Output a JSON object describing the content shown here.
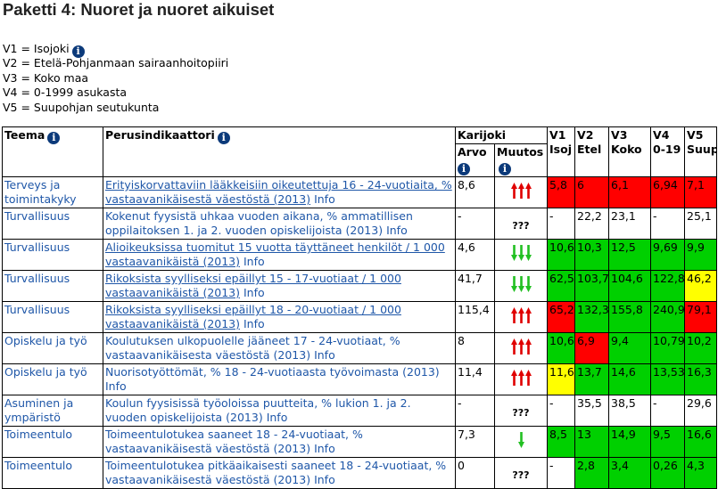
{
  "title": "Paketti 4: Nuoret ja nuoret aikuiset",
  "legend": [
    "V1 = Isojoki",
    "V2 = Etelä-Pohjanmaan sairaanhoitopiiri",
    "V3 = Koko maa",
    "V4 = 0-1999 asukasta",
    "V5 = Suupohjan seutukunta"
  ],
  "header": {
    "teema": "Teema",
    "perusindikaattori": "Perusindikaattori",
    "karijoki": "Karijoki",
    "arvo": "Arvo",
    "muutos": "Muutos",
    "v": [
      {
        "code": "V1",
        "short": "Isoj"
      },
      {
        "code": "V2",
        "short": "Etel"
      },
      {
        "code": "V3",
        "short": "Koko"
      },
      {
        "code": "V4",
        "short": "0-19"
      },
      {
        "code": "V5",
        "short": "Suup"
      }
    ]
  },
  "rows": [
    {
      "teema": "Terveys ja toimintakyky",
      "indicator": "Erityiskorvattaviin lääkkeisiin oikeutettuja 16 - 24-vuotiaita, % vastaavanikäisestä väestöstä (2013)",
      "info": "Info",
      "underline": true,
      "arvo": "8,6",
      "muutos": "up3",
      "v": [
        {
          "t": "5,8",
          "c": "red"
        },
        {
          "t": "6",
          "c": "red"
        },
        {
          "t": "6,1",
          "c": "red"
        },
        {
          "t": "6,94",
          "c": "red"
        },
        {
          "t": "7,1",
          "c": "red"
        }
      ]
    },
    {
      "teema": "Turvallisuus",
      "indicator": "Kokenut fyysistä uhkaa vuoden aikana, % ammatillisen oppilaitoksen 1. ja 2. vuoden opiskelijoista (2013)",
      "info": "Info",
      "underline": false,
      "arvo": "-",
      "muutos": "???",
      "v": [
        {
          "t": "-",
          "c": ""
        },
        {
          "t": "22,2",
          "c": ""
        },
        {
          "t": "23,1",
          "c": ""
        },
        {
          "t": "-",
          "c": ""
        },
        {
          "t": "25,1",
          "c": ""
        }
      ]
    },
    {
      "teema": "Turvallisuus",
      "indicator": "Alioikeuksissa tuomitut 15 vuotta täyttäneet henkilöt / 1 000 vastaavanikäistä (2013)",
      "info": "Info",
      "underline": true,
      "arvo": "4,6",
      "muutos": "down3",
      "v": [
        {
          "t": "10,6",
          "c": "green"
        },
        {
          "t": "10,3",
          "c": "green"
        },
        {
          "t": "12,5",
          "c": "green"
        },
        {
          "t": "9,69",
          "c": "green"
        },
        {
          "t": "9,9",
          "c": "green"
        }
      ]
    },
    {
      "teema": "Turvallisuus",
      "indicator": "Rikoksista syylliseksi epäillyt 15 - 17-vuotiaat / 1 000 vastaavanikäistä (2013)",
      "info": "Info",
      "underline": true,
      "arvo": "41,7",
      "muutos": "down3",
      "v": [
        {
          "t": "62,5",
          "c": "green"
        },
        {
          "t": "103,7",
          "c": "green"
        },
        {
          "t": "104,6",
          "c": "green"
        },
        {
          "t": "122,87",
          "c": "green"
        },
        {
          "t": "46,2",
          "c": "yellow"
        }
      ]
    },
    {
      "teema": "Turvallisuus",
      "indicator": "Rikoksista syylliseksi epäillyt 18 - 20-vuotiaat / 1 000 vastaavanikäistä (2013)",
      "info": "Info",
      "underline": true,
      "arvo": "115,4",
      "muutos": "up3",
      "v": [
        {
          "t": "65,2",
          "c": "red"
        },
        {
          "t": "132,3",
          "c": "green"
        },
        {
          "t": "155,8",
          "c": "green"
        },
        {
          "t": "240,93",
          "c": "green"
        },
        {
          "t": "79,1",
          "c": "red"
        }
      ]
    },
    {
      "teema": "Opiskelu ja työ",
      "indicator": "Koulutuksen ulkopuolelle jääneet 17 - 24-vuotiaat, % vastaavanikäisesta väestöstä (2013)",
      "info": "Info",
      "underline": false,
      "arvo": "8",
      "muutos": "up3",
      "v": [
        {
          "t": "10,6",
          "c": "green"
        },
        {
          "t": "6,9",
          "c": "red"
        },
        {
          "t": "9,4",
          "c": "green"
        },
        {
          "t": "10,79",
          "c": "green"
        },
        {
          "t": "10,2",
          "c": "green"
        }
      ]
    },
    {
      "teema": "Opiskelu ja työ",
      "indicator": "Nuorisotyöttömät, % 18 - 24-vuotiaasta työvoimasta (2013)",
      "info": "Info",
      "underline": false,
      "arvo": "11,4",
      "muutos": "up3",
      "v": [
        {
          "t": "11,6",
          "c": "yellow"
        },
        {
          "t": "13,7",
          "c": "green"
        },
        {
          "t": "14,6",
          "c": "green"
        },
        {
          "t": "13,53",
          "c": "green"
        },
        {
          "t": "16,3",
          "c": "green"
        }
      ]
    },
    {
      "teema": "Asuminen ja ympäristö",
      "indicator": "Koulun fyysisissä työoloissa puutteita, % lukion 1. ja 2. vuoden opiskelijoista (2013)",
      "info": "Info",
      "underline": false,
      "arvo": "-",
      "muutos": "???",
      "v": [
        {
          "t": "-",
          "c": ""
        },
        {
          "t": "35,5",
          "c": ""
        },
        {
          "t": "38,5",
          "c": ""
        },
        {
          "t": "-",
          "c": ""
        },
        {
          "t": "29,6",
          "c": ""
        }
      ]
    },
    {
      "teema": "Toimeentulo",
      "indicator": "Toimeentulotukea saaneet 18 - 24-vuotiaat, % vastaavanikäisestä väestöstä (2013)",
      "info": "Info",
      "underline": false,
      "arvo": "7,3",
      "muutos": "down1",
      "v": [
        {
          "t": "8,5",
          "c": "green"
        },
        {
          "t": "13",
          "c": "green"
        },
        {
          "t": "14,9",
          "c": "green"
        },
        {
          "t": "9,5",
          "c": "green"
        },
        {
          "t": "16,6",
          "c": "green"
        }
      ]
    },
    {
      "teema": "Toimeentulo",
      "indicator": "Toimeentulotukea pitkäaikaisesti saaneet 18 - 24-vuotiaat, % vastaavanikäisestä väestöstä (2013)",
      "info": "Info",
      "underline": false,
      "arvo": "0",
      "muutos": "???",
      "v": [
        {
          "t": "-",
          "c": ""
        },
        {
          "t": "2,8",
          "c": "green"
        },
        {
          "t": "3,4",
          "c": "green"
        },
        {
          "t": "0,26",
          "c": "green"
        },
        {
          "t": "4,3",
          "c": "green"
        }
      ]
    }
  ],
  "colors": {
    "red": "#ff0000",
    "green": "#00d000",
    "yellow": "#ffff00",
    "link": "#1f57a8",
    "info_icon": "#0c3a7a"
  },
  "icons": {
    "info": "info-icon",
    "up_arrow": "red-up-arrow-icon",
    "down_arrow": "green-down-arrow-icon"
  }
}
